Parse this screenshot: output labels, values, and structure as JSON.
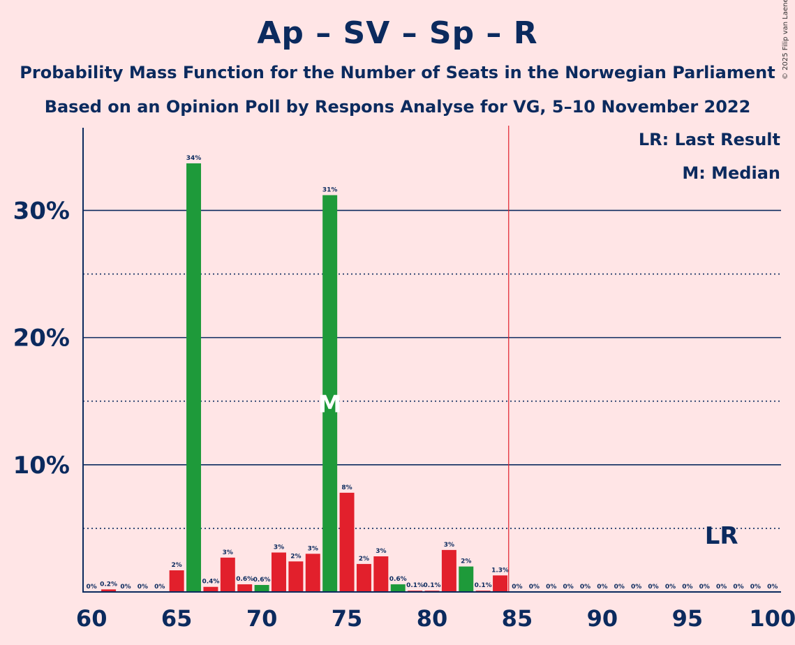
{
  "title": "Ap – SV – Sp – R",
  "subtitle1": "Probability Mass Function for the Number of Seats in the Norwegian Parliament",
  "subtitle2": "Based on an Opinion Poll by Respons Analyse for VG, 5–10 November 2022",
  "copyright": "© 2025 Filip van Laenen",
  "legend": {
    "last_result": "LR: Last Result",
    "median": "M: Median"
  },
  "colors": {
    "background": "#FFE5E6",
    "text": "#0B2A5E",
    "red": "#E2202C",
    "green": "#1E9A3A",
    "majority_line": "#E2202C"
  },
  "chart_data": {
    "type": "bar",
    "x": [
      60,
      61,
      62,
      63,
      64,
      65,
      66,
      67,
      68,
      69,
      70,
      71,
      72,
      73,
      74,
      75,
      76,
      77,
      78,
      79,
      80,
      81,
      82,
      83,
      84,
      85,
      86,
      87,
      88,
      89,
      90,
      91,
      92,
      93,
      94,
      95,
      96,
      97,
      98,
      99,
      100
    ],
    "values": [
      0,
      0.2,
      0,
      0,
      0,
      1.7,
      33.7,
      0.4,
      2.7,
      0.6,
      0.55,
      3.1,
      2.4,
      3.0,
      31.2,
      7.8,
      2.2,
      2.8,
      0.6,
      0.1,
      0.1,
      3.3,
      2.0,
      0.1,
      1.3,
      0,
      0,
      0,
      0,
      0,
      0,
      0,
      0,
      0,
      0,
      0,
      0,
      0,
      0,
      0,
      0
    ],
    "labels": [
      "0%",
      "0.2%",
      "0%",
      "0%",
      "0%",
      "2%",
      "34%",
      "0.4%",
      "3%",
      "0.6%",
      "0.6%",
      "3%",
      "2%",
      "3%",
      "31%",
      "8%",
      "2%",
      "3%",
      "0.6%",
      "0.1%",
      "0.1%",
      "3%",
      "2%",
      "0.1%",
      "1.3%",
      "0%",
      "0%",
      "0%",
      "0%",
      "0%",
      "0%",
      "0%",
      "0%",
      "0%",
      "0%",
      "0%",
      "0%",
      "0%",
      "0%",
      "0%",
      "0%"
    ],
    "bar_colors": [
      "red",
      "red",
      "red",
      "red",
      "red",
      "red",
      "green",
      "red",
      "red",
      "red",
      "green",
      "red",
      "red",
      "red",
      "green",
      "red",
      "red",
      "red",
      "green",
      "red",
      "red",
      "red",
      "green",
      "red",
      "red",
      "red",
      "red",
      "red",
      "red",
      "red",
      "red",
      "red",
      "red",
      "red",
      "red",
      "red",
      "red",
      "red",
      "red",
      "red",
      "red"
    ],
    "xticks": [
      60,
      65,
      70,
      75,
      80,
      85,
      90,
      95,
      100
    ],
    "yticks": [
      10,
      20,
      30
    ],
    "ytick_labels": [
      "10%",
      "20%",
      "30%"
    ],
    "ylim": [
      0,
      36.5
    ],
    "xlim": [
      59.5,
      100.5
    ],
    "solid_gridlines": [
      10,
      20,
      30
    ],
    "dotted_gridlines": [
      5,
      15,
      25
    ],
    "majority_line_x": 84.5,
    "median_x": 74,
    "median_marker": "M",
    "last_result_x": 97,
    "last_result_marker": "LR"
  }
}
